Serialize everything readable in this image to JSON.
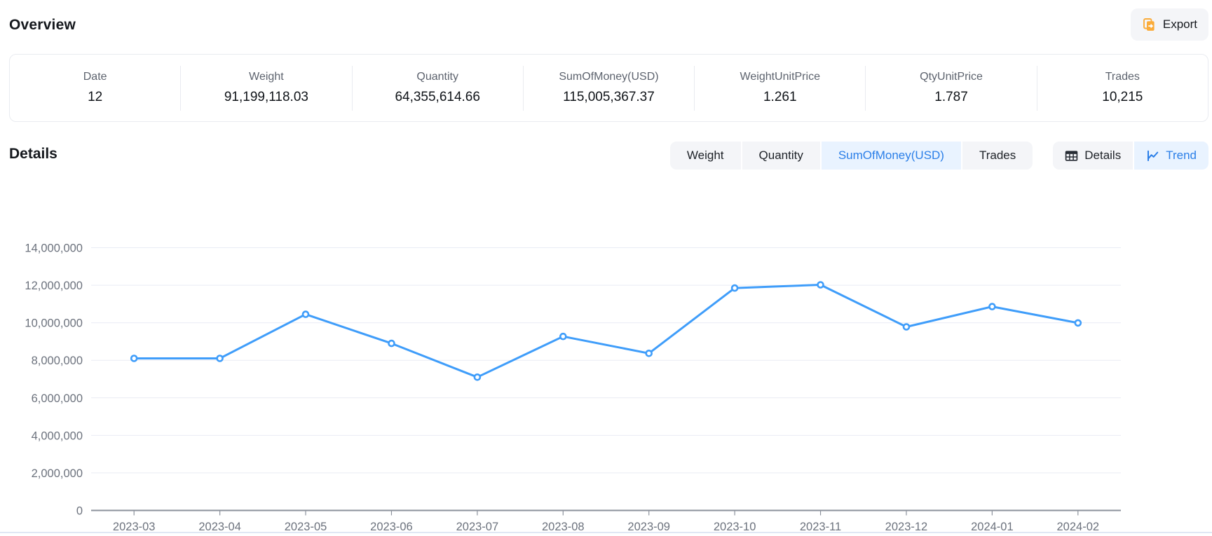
{
  "overview": {
    "title": "Overview",
    "export_label": "Export",
    "stats": [
      {
        "label": "Date",
        "value": "12"
      },
      {
        "label": "Weight",
        "value": "91,199,118.03"
      },
      {
        "label": "Quantity",
        "value": "64,355,614.66"
      },
      {
        "label": "SumOfMoney(USD)",
        "value": "115,005,367.37"
      },
      {
        "label": "WeightUnitPrice",
        "value": "1.261"
      },
      {
        "label": "QtyUnitPrice",
        "value": "1.787"
      },
      {
        "label": "Trades",
        "value": "10,215"
      }
    ]
  },
  "details": {
    "title": "Details",
    "metric_tabs": [
      {
        "label": "Weight",
        "active": false
      },
      {
        "label": "Quantity",
        "active": false
      },
      {
        "label": "SumOfMoney(USD)",
        "active": true
      },
      {
        "label": "Trades",
        "active": false
      }
    ],
    "view_tabs": [
      {
        "label": "Details",
        "icon": "table-icon",
        "active": false
      },
      {
        "label": "Trend",
        "icon": "trend-icon",
        "active": true
      }
    ]
  },
  "colors": {
    "line": "#3f9dfa",
    "tab_bg": "#f4f5f8",
    "tab_active_bg": "#e9f3ff",
    "tab_active_text": "#2b7fe8",
    "export_icon": "#fbac3a",
    "grid": "#e9ecf4",
    "axis": "#8b919b",
    "axis_text": "#6c727d"
  },
  "chart_data": {
    "type": "line",
    "title": "",
    "x": [
      "2023-03",
      "2023-04",
      "2023-05",
      "2023-06",
      "2023-07",
      "2023-08",
      "2023-09",
      "2023-10",
      "2023-11",
      "2023-12",
      "2024-01",
      "2024-02"
    ],
    "series": [
      {
        "name": "SumOfMoney(USD)",
        "values": [
          8100000,
          8100000,
          10450000,
          8900000,
          7100000,
          9270000,
          8370000,
          11850000,
          12020000,
          9780000,
          10860000,
          9990000
        ]
      }
    ],
    "xlabel": "",
    "ylabel": "",
    "ylim": [
      0,
      14000000
    ],
    "ytick_interval": 2000000,
    "grid": true,
    "legend": false,
    "point_style": "hollow-circle"
  }
}
